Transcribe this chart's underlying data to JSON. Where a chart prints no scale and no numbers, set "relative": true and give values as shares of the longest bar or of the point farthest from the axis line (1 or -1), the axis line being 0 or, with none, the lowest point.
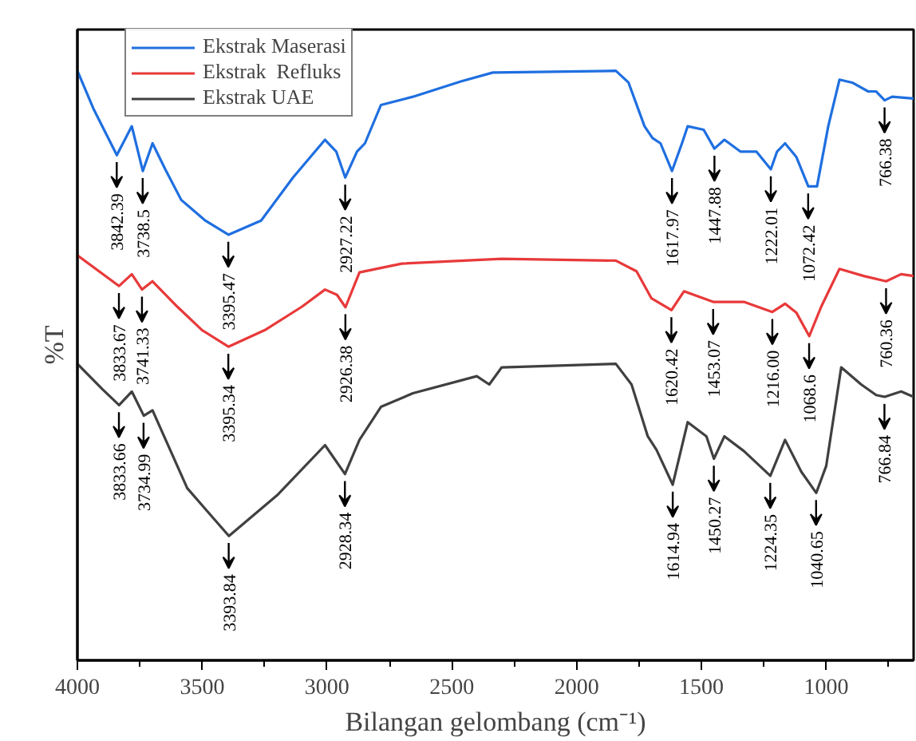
{
  "chart_data": {
    "type": "line",
    "relative": true,
    "xlabel": "Bilangan gelombang (cm⁻¹)",
    "ylabel": "%T",
    "xlim": [
      4000,
      650
    ],
    "xticks": [
      4000,
      {
        "value": 3750,
        "label": null
      },
      3500,
      {
        "value": 3250,
        "label": null
      },
      3000,
      {
        "value": 2750,
        "label": null
      },
      2500,
      {
        "value": 2250,
        "label": null
      },
      2000,
      {
        "value": 1750,
        "label": null
      },
      1500,
      {
        "value": 1250,
        "label": null
      },
      1000,
      {
        "value": 750,
        "label": null
      }
    ],
    "grid": false,
    "legend": "top left",
    "marker": "none",
    "line_style": "solid",
    "series": [
      {
        "name": "Ekstrak Maserasi",
        "color": "#1f6fe0",
        "x": [
          4000,
          3936,
          3842,
          3782,
          3738,
          3699,
          3648,
          3584,
          3488,
          3395,
          3264,
          3136,
          3008,
          2963,
          2927,
          2880,
          2848,
          2784,
          2656,
          2464,
          2336,
          1843,
          1792,
          1728,
          1696,
          1664,
          1618,
          1578,
          1555,
          1491,
          1448,
          1408,
          1344,
          1280,
          1222,
          1197,
          1165,
          1120,
          1072,
          1037,
          992,
          947,
          896,
          832,
          800,
          766,
          736,
          650
        ],
        "values": [
          1.0,
          0.936,
          0.857,
          0.906,
          0.83,
          0.877,
          0.833,
          0.781,
          0.746,
          0.722,
          0.746,
          0.819,
          0.883,
          0.863,
          0.819,
          0.863,
          0.877,
          0.942,
          0.956,
          0.982,
          0.997,
          1.0,
          0.98,
          0.906,
          0.886,
          0.877,
          0.83,
          0.877,
          0.906,
          0.9,
          0.868,
          0.883,
          0.863,
          0.863,
          0.833,
          0.863,
          0.877,
          0.854,
          0.804,
          0.804,
          0.906,
          0.985,
          0.98,
          0.965,
          0.965,
          0.95,
          0.956,
          0.953
        ]
      },
      {
        "name": "Ekstrak  Refluks",
        "color": "#e8393a",
        "x": [
          4000,
          3833,
          3782,
          3741,
          3699,
          3600,
          3500,
          3395,
          3250,
          3100,
          3008,
          2960,
          2926,
          2870,
          2700,
          2300,
          1843,
          1760,
          1700,
          1620,
          1570,
          1453,
          1330,
          1216,
          1165,
          1120,
          1068,
          1020,
          947,
          850,
          760,
          700,
          650
        ],
        "values": [
          0.687,
          0.635,
          0.655,
          0.629,
          0.643,
          0.6,
          0.56,
          0.532,
          0.56,
          0.6,
          0.629,
          0.62,
          0.599,
          0.658,
          0.673,
          0.681,
          0.678,
          0.66,
          0.614,
          0.594,
          0.626,
          0.608,
          0.608,
          0.591,
          0.605,
          0.59,
          0.55,
          0.6,
          0.664,
          0.652,
          0.643,
          0.655,
          0.652
        ]
      },
      {
        "name": "Ekstrak UAE",
        "color": "#404040",
        "x": [
          4000,
          3900,
          3833,
          3782,
          3734,
          3699,
          3560,
          3393,
          3200,
          3008,
          2928,
          2870,
          2784,
          2656,
          2400,
          2350,
          2300,
          1843,
          1780,
          1715,
          1680,
          1615,
          1555,
          1480,
          1450,
          1408,
          1330,
          1224,
          1165,
          1100,
          1040,
          1000,
          940,
          860,
          800,
          766,
          700,
          650
        ],
        "values": [
          0.503,
          0.46,
          0.433,
          0.456,
          0.415,
          0.424,
          0.292,
          0.211,
          0.28,
          0.365,
          0.316,
          0.374,
          0.43,
          0.453,
          0.482,
          0.468,
          0.497,
          0.503,
          0.468,
          0.38,
          0.357,
          0.298,
          0.404,
          0.38,
          0.342,
          0.38,
          0.355,
          0.313,
          0.374,
          0.32,
          0.284,
          0.33,
          0.497,
          0.468,
          0.45,
          0.447,
          0.456,
          0.447
        ]
      }
    ],
    "annotations": [
      {
        "text": "3842.39",
        "x": 3842.39,
        "y": 0.857
      },
      {
        "text": "3738.5",
        "x": 3738.5,
        "y": 0.83
      },
      {
        "text": "3395.47",
        "x": 3395.47,
        "y": 0.722
      },
      {
        "text": "2927.22",
        "x": 2927.22,
        "y": 0.819
      },
      {
        "text": "1617.97",
        "x": 1617.97,
        "y": 0.83
      },
      {
        "text": "1447.88",
        "x": 1447.88,
        "y": 0.868
      },
      {
        "text": "1222.01",
        "x": 1222.01,
        "y": 0.833
      },
      {
        "text": "1072.42",
        "x": 1072.42,
        "y": 0.804
      },
      {
        "text": "766.38",
        "x": 766.38,
        "y": 0.95
      },
      {
        "text": "3833.67",
        "x": 3833.67,
        "y": 0.635
      },
      {
        "text": "3741.33",
        "x": 3741.33,
        "y": 0.629
      },
      {
        "text": "3395.34",
        "x": 3395.34,
        "y": 0.532
      },
      {
        "text": "2926.38",
        "x": 2926.38,
        "y": 0.599
      },
      {
        "text": "1620.42",
        "x": 1620.42,
        "y": 0.594
      },
      {
        "text": "1453.07",
        "x": 1453.07,
        "y": 0.608
      },
      {
        "text": "1216.00",
        "x": 1216.0,
        "y": 0.591
      },
      {
        "text": "1068.6",
        "x": 1068.6,
        "y": 0.55
      },
      {
        "text": "760.36",
        "x": 760.36,
        "y": 0.643
      },
      {
        "text": "3833.66",
        "x": 3833.66,
        "y": 0.433
      },
      {
        "text": "3734.99",
        "x": 3734.99,
        "y": 0.415
      },
      {
        "text": "3393.84",
        "x": 3393.84,
        "y": 0.211
      },
      {
        "text": "2928.34",
        "x": 2928.34,
        "y": 0.316
      },
      {
        "text": "1614.94",
        "x": 1614.94,
        "y": 0.298
      },
      {
        "text": "1450.27",
        "x": 1450.27,
        "y": 0.342
      },
      {
        "text": "1224.35",
        "x": 1224.35,
        "y": 0.313
      },
      {
        "text": "1040.65",
        "x": 1040.65,
        "y": 0.284
      },
      {
        "text": "766.84",
        "x": 766.84,
        "y": 0.447
      }
    ]
  }
}
